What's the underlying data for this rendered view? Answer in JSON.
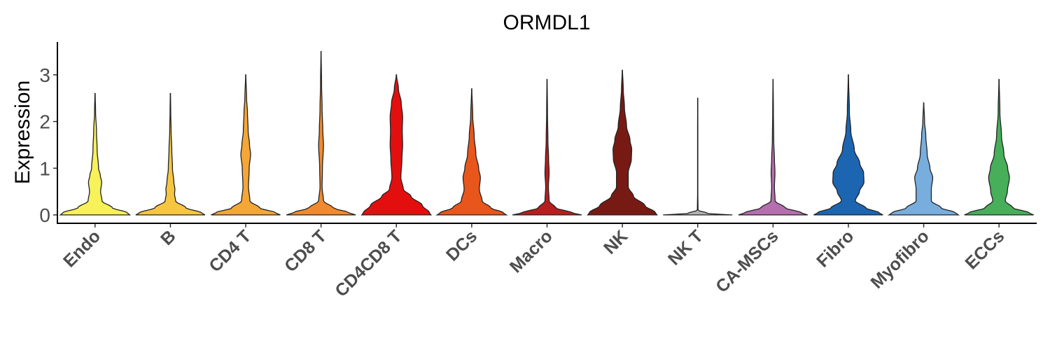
{
  "chart_data": {
    "type": "violin",
    "title": "ORMDL1",
    "ylabel": "Expression",
    "xlabel": "",
    "ylim": [
      -0.2,
      3.7
    ],
    "yticks": [
      0,
      1,
      2,
      3
    ],
    "grid": false,
    "legend": "none",
    "categories": [
      {
        "name": "Endo",
        "color": "#F7F15A",
        "max": 2.6,
        "profile": [
          [
            0,
            1.0
          ],
          [
            0.05,
            0.92
          ],
          [
            0.15,
            0.5
          ],
          [
            0.3,
            0.2
          ],
          [
            0.5,
            0.16
          ],
          [
            0.7,
            0.19
          ],
          [
            0.85,
            0.15
          ],
          [
            1.0,
            0.1
          ],
          [
            1.4,
            0.06
          ],
          [
            1.8,
            0.04
          ],
          [
            2.2,
            0.015
          ],
          [
            2.6,
            0.004
          ]
        ]
      },
      {
        "name": "B",
        "color": "#F6C641",
        "max": 2.6,
        "profile": [
          [
            0,
            1.0
          ],
          [
            0.05,
            0.88
          ],
          [
            0.15,
            0.45
          ],
          [
            0.3,
            0.15
          ],
          [
            0.45,
            0.12
          ],
          [
            0.55,
            0.13
          ],
          [
            0.7,
            0.1
          ],
          [
            1.0,
            0.06
          ],
          [
            1.4,
            0.04
          ],
          [
            1.8,
            0.02
          ],
          [
            2.2,
            0.01
          ],
          [
            2.6,
            0.004
          ]
        ]
      },
      {
        "name": "CD4 T",
        "color": "#F4A637",
        "max": 3.0,
        "profile": [
          [
            0,
            1.0
          ],
          [
            0.05,
            0.85
          ],
          [
            0.15,
            0.4
          ],
          [
            0.3,
            0.12
          ],
          [
            0.6,
            0.08
          ],
          [
            1.0,
            0.1
          ],
          [
            1.3,
            0.14
          ],
          [
            1.5,
            0.11
          ],
          [
            1.8,
            0.07
          ],
          [
            2.2,
            0.05
          ],
          [
            2.5,
            0.025
          ],
          [
            3.0,
            0.004
          ]
        ]
      },
      {
        "name": "CD8 T",
        "color": "#F18A2E",
        "max": 3.5,
        "profile": [
          [
            0,
            1.0
          ],
          [
            0.05,
            0.8
          ],
          [
            0.15,
            0.35
          ],
          [
            0.3,
            0.07
          ],
          [
            0.6,
            0.03
          ],
          [
            1.0,
            0.04
          ],
          [
            1.5,
            0.07
          ],
          [
            1.8,
            0.05
          ],
          [
            2.3,
            0.03
          ],
          [
            2.8,
            0.015
          ],
          [
            3.5,
            0.003
          ]
        ]
      },
      {
        "name": "CD4CD8 T",
        "color": "#E30F0F",
        "max": 3.0,
        "profile": [
          [
            0,
            1.0
          ],
          [
            0.05,
            0.95
          ],
          [
            0.2,
            0.75
          ],
          [
            0.4,
            0.42
          ],
          [
            0.55,
            0.2
          ],
          [
            0.8,
            0.13
          ],
          [
            1.2,
            0.16
          ],
          [
            1.5,
            0.18
          ],
          [
            1.8,
            0.17
          ],
          [
            2.1,
            0.18
          ],
          [
            2.4,
            0.14
          ],
          [
            2.7,
            0.06
          ],
          [
            3.0,
            0.005
          ]
        ]
      },
      {
        "name": "DCs",
        "color": "#E8561C",
        "max": 2.7,
        "profile": [
          [
            0,
            1.0
          ],
          [
            0.05,
            0.9
          ],
          [
            0.15,
            0.55
          ],
          [
            0.3,
            0.3
          ],
          [
            0.55,
            0.22
          ],
          [
            0.8,
            0.25
          ],
          [
            1.0,
            0.2
          ],
          [
            1.3,
            0.12
          ],
          [
            1.7,
            0.07
          ],
          [
            2.1,
            0.03
          ],
          [
            2.7,
            0.004
          ]
        ]
      },
      {
        "name": "Macro",
        "color": "#B81E1E",
        "max": 2.9,
        "profile": [
          [
            0,
            1.0
          ],
          [
            0.05,
            0.7
          ],
          [
            0.15,
            0.25
          ],
          [
            0.3,
            0.06
          ],
          [
            0.6,
            0.04
          ],
          [
            0.9,
            0.06
          ],
          [
            1.2,
            0.045
          ],
          [
            1.6,
            0.025
          ],
          [
            2.2,
            0.012
          ],
          [
            2.9,
            0.004
          ]
        ]
      },
      {
        "name": "NK",
        "color": "#781A14",
        "max": 3.1,
        "profile": [
          [
            0,
            1.0
          ],
          [
            0.05,
            0.95
          ],
          [
            0.2,
            0.65
          ],
          [
            0.4,
            0.32
          ],
          [
            0.6,
            0.17
          ],
          [
            0.9,
            0.17
          ],
          [
            1.2,
            0.26
          ],
          [
            1.4,
            0.27
          ],
          [
            1.6,
            0.22
          ],
          [
            1.9,
            0.12
          ],
          [
            2.3,
            0.06
          ],
          [
            2.7,
            0.025
          ],
          [
            3.1,
            0.004
          ]
        ]
      },
      {
        "name": "NK T",
        "color": "#B3B3B3",
        "max": 2.5,
        "profile": [
          [
            0,
            1.0
          ],
          [
            0.03,
            0.3
          ],
          [
            0.1,
            0.01
          ],
          [
            0.5,
            0.004
          ],
          [
            1.0,
            0.004
          ],
          [
            1.8,
            0.004
          ],
          [
            2.5,
            0.002
          ]
        ]
      },
      {
        "name": "CA-MSCs",
        "color": "#B56FAF",
        "max": 2.9,
        "profile": [
          [
            0,
            1.0
          ],
          [
            0.05,
            0.8
          ],
          [
            0.15,
            0.35
          ],
          [
            0.3,
            0.06
          ],
          [
            0.6,
            0.04
          ],
          [
            0.9,
            0.055
          ],
          [
            1.2,
            0.04
          ],
          [
            1.6,
            0.02
          ],
          [
            2.2,
            0.01
          ],
          [
            2.9,
            0.003
          ]
        ]
      },
      {
        "name": "Fibro",
        "color": "#1C65B1",
        "max": 3.0,
        "profile": [
          [
            0,
            1.0
          ],
          [
            0.05,
            0.88
          ],
          [
            0.15,
            0.5
          ],
          [
            0.3,
            0.2
          ],
          [
            0.5,
            0.32
          ],
          [
            0.7,
            0.45
          ],
          [
            0.9,
            0.44
          ],
          [
            1.1,
            0.33
          ],
          [
            1.4,
            0.17
          ],
          [
            1.8,
            0.07
          ],
          [
            2.2,
            0.03
          ],
          [
            3.0,
            0.004
          ]
        ]
      },
      {
        "name": "Myofibro",
        "color": "#78AEDE",
        "max": 2.4,
        "profile": [
          [
            0,
            1.0
          ],
          [
            0.05,
            0.9
          ],
          [
            0.15,
            0.5
          ],
          [
            0.3,
            0.22
          ],
          [
            0.55,
            0.22
          ],
          [
            0.8,
            0.26
          ],
          [
            1.0,
            0.18
          ],
          [
            1.3,
            0.1
          ],
          [
            1.7,
            0.06
          ],
          [
            2.0,
            0.025
          ],
          [
            2.4,
            0.004
          ]
        ]
      },
      {
        "name": "ECCs",
        "color": "#47AE5A",
        "max": 2.9,
        "profile": [
          [
            0,
            1.0
          ],
          [
            0.05,
            0.85
          ],
          [
            0.15,
            0.4
          ],
          [
            0.3,
            0.18
          ],
          [
            0.5,
            0.24
          ],
          [
            0.8,
            0.3
          ],
          [
            1.0,
            0.25
          ],
          [
            1.3,
            0.14
          ],
          [
            1.7,
            0.07
          ],
          [
            2.2,
            0.025
          ],
          [
            2.9,
            0.004
          ]
        ]
      }
    ]
  }
}
